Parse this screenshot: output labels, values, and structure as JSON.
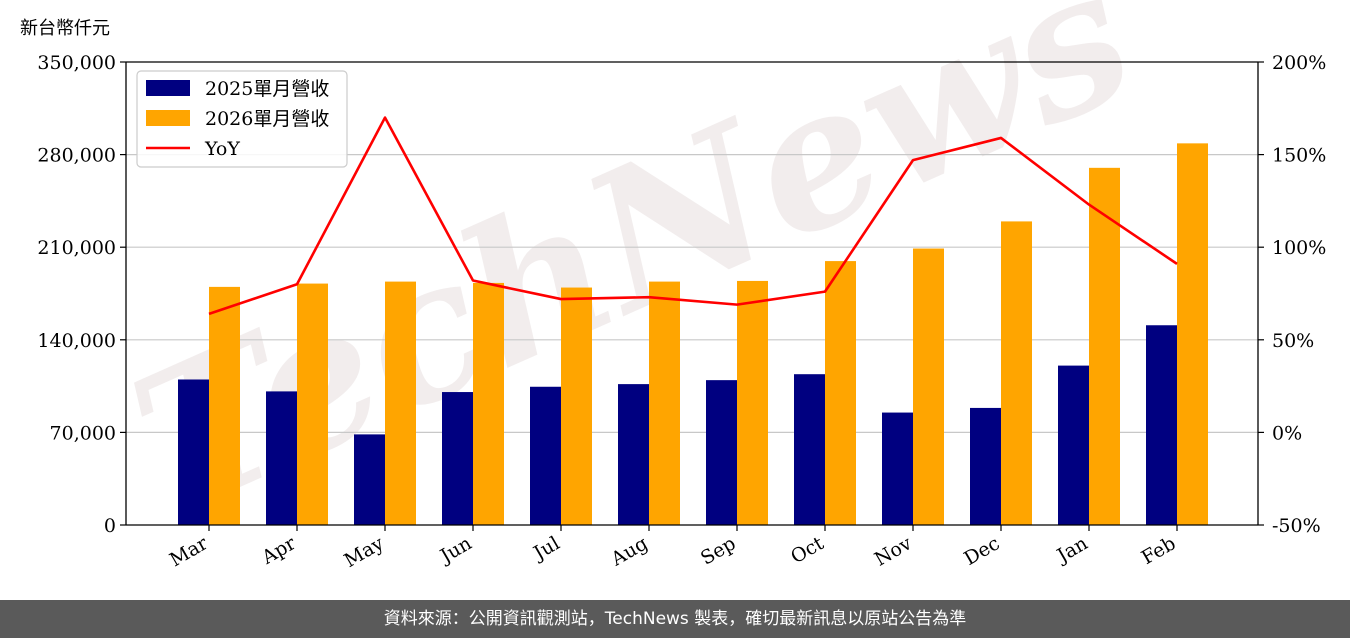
{
  "unit_label": "新台幣仟元",
  "watermark": "TechNews",
  "footer_text": "資料來源：公開資訊觀測站，TechNews 製表，確切最新訊息以原站公告為準",
  "chart_data": {
    "type": "bar",
    "categories": [
      "Mar",
      "Apr",
      "May",
      "Jun",
      "Jul",
      "Aug",
      "Sep",
      "Oct",
      "Nov",
      "Dec",
      "Jan",
      "Feb"
    ],
    "series": [
      {
        "name": "2025單月營收",
        "color": "#000080",
        "values": [
          110000,
          101000,
          68500,
          100500,
          104500,
          106500,
          109500,
          114000,
          85000,
          88500,
          120500,
          151000
        ]
      },
      {
        "name": "2026單月營收",
        "color": "#FFA500",
        "values": [
          180000,
          182500,
          184000,
          183000,
          179500,
          184000,
          184500,
          199500,
          209000,
          229500,
          270000,
          288500
        ]
      }
    ],
    "line_series": {
      "name": "YoY",
      "color": "#FF0000",
      "axis": "right",
      "values": [
        64,
        80,
        170,
        82,
        72,
        73,
        69,
        76,
        147,
        159,
        123,
        91
      ]
    },
    "ylim": [
      0,
      350000
    ],
    "yticks": [
      "0",
      "70,000",
      "140,000",
      "210,000",
      "280,000",
      "350,000"
    ],
    "y2lim": [
      -50,
      200
    ],
    "y2ticks": [
      "-50%",
      "0%",
      "50%",
      "100%",
      "150%",
      "200%"
    ],
    "grid": true,
    "legend_position": "top-left"
  }
}
